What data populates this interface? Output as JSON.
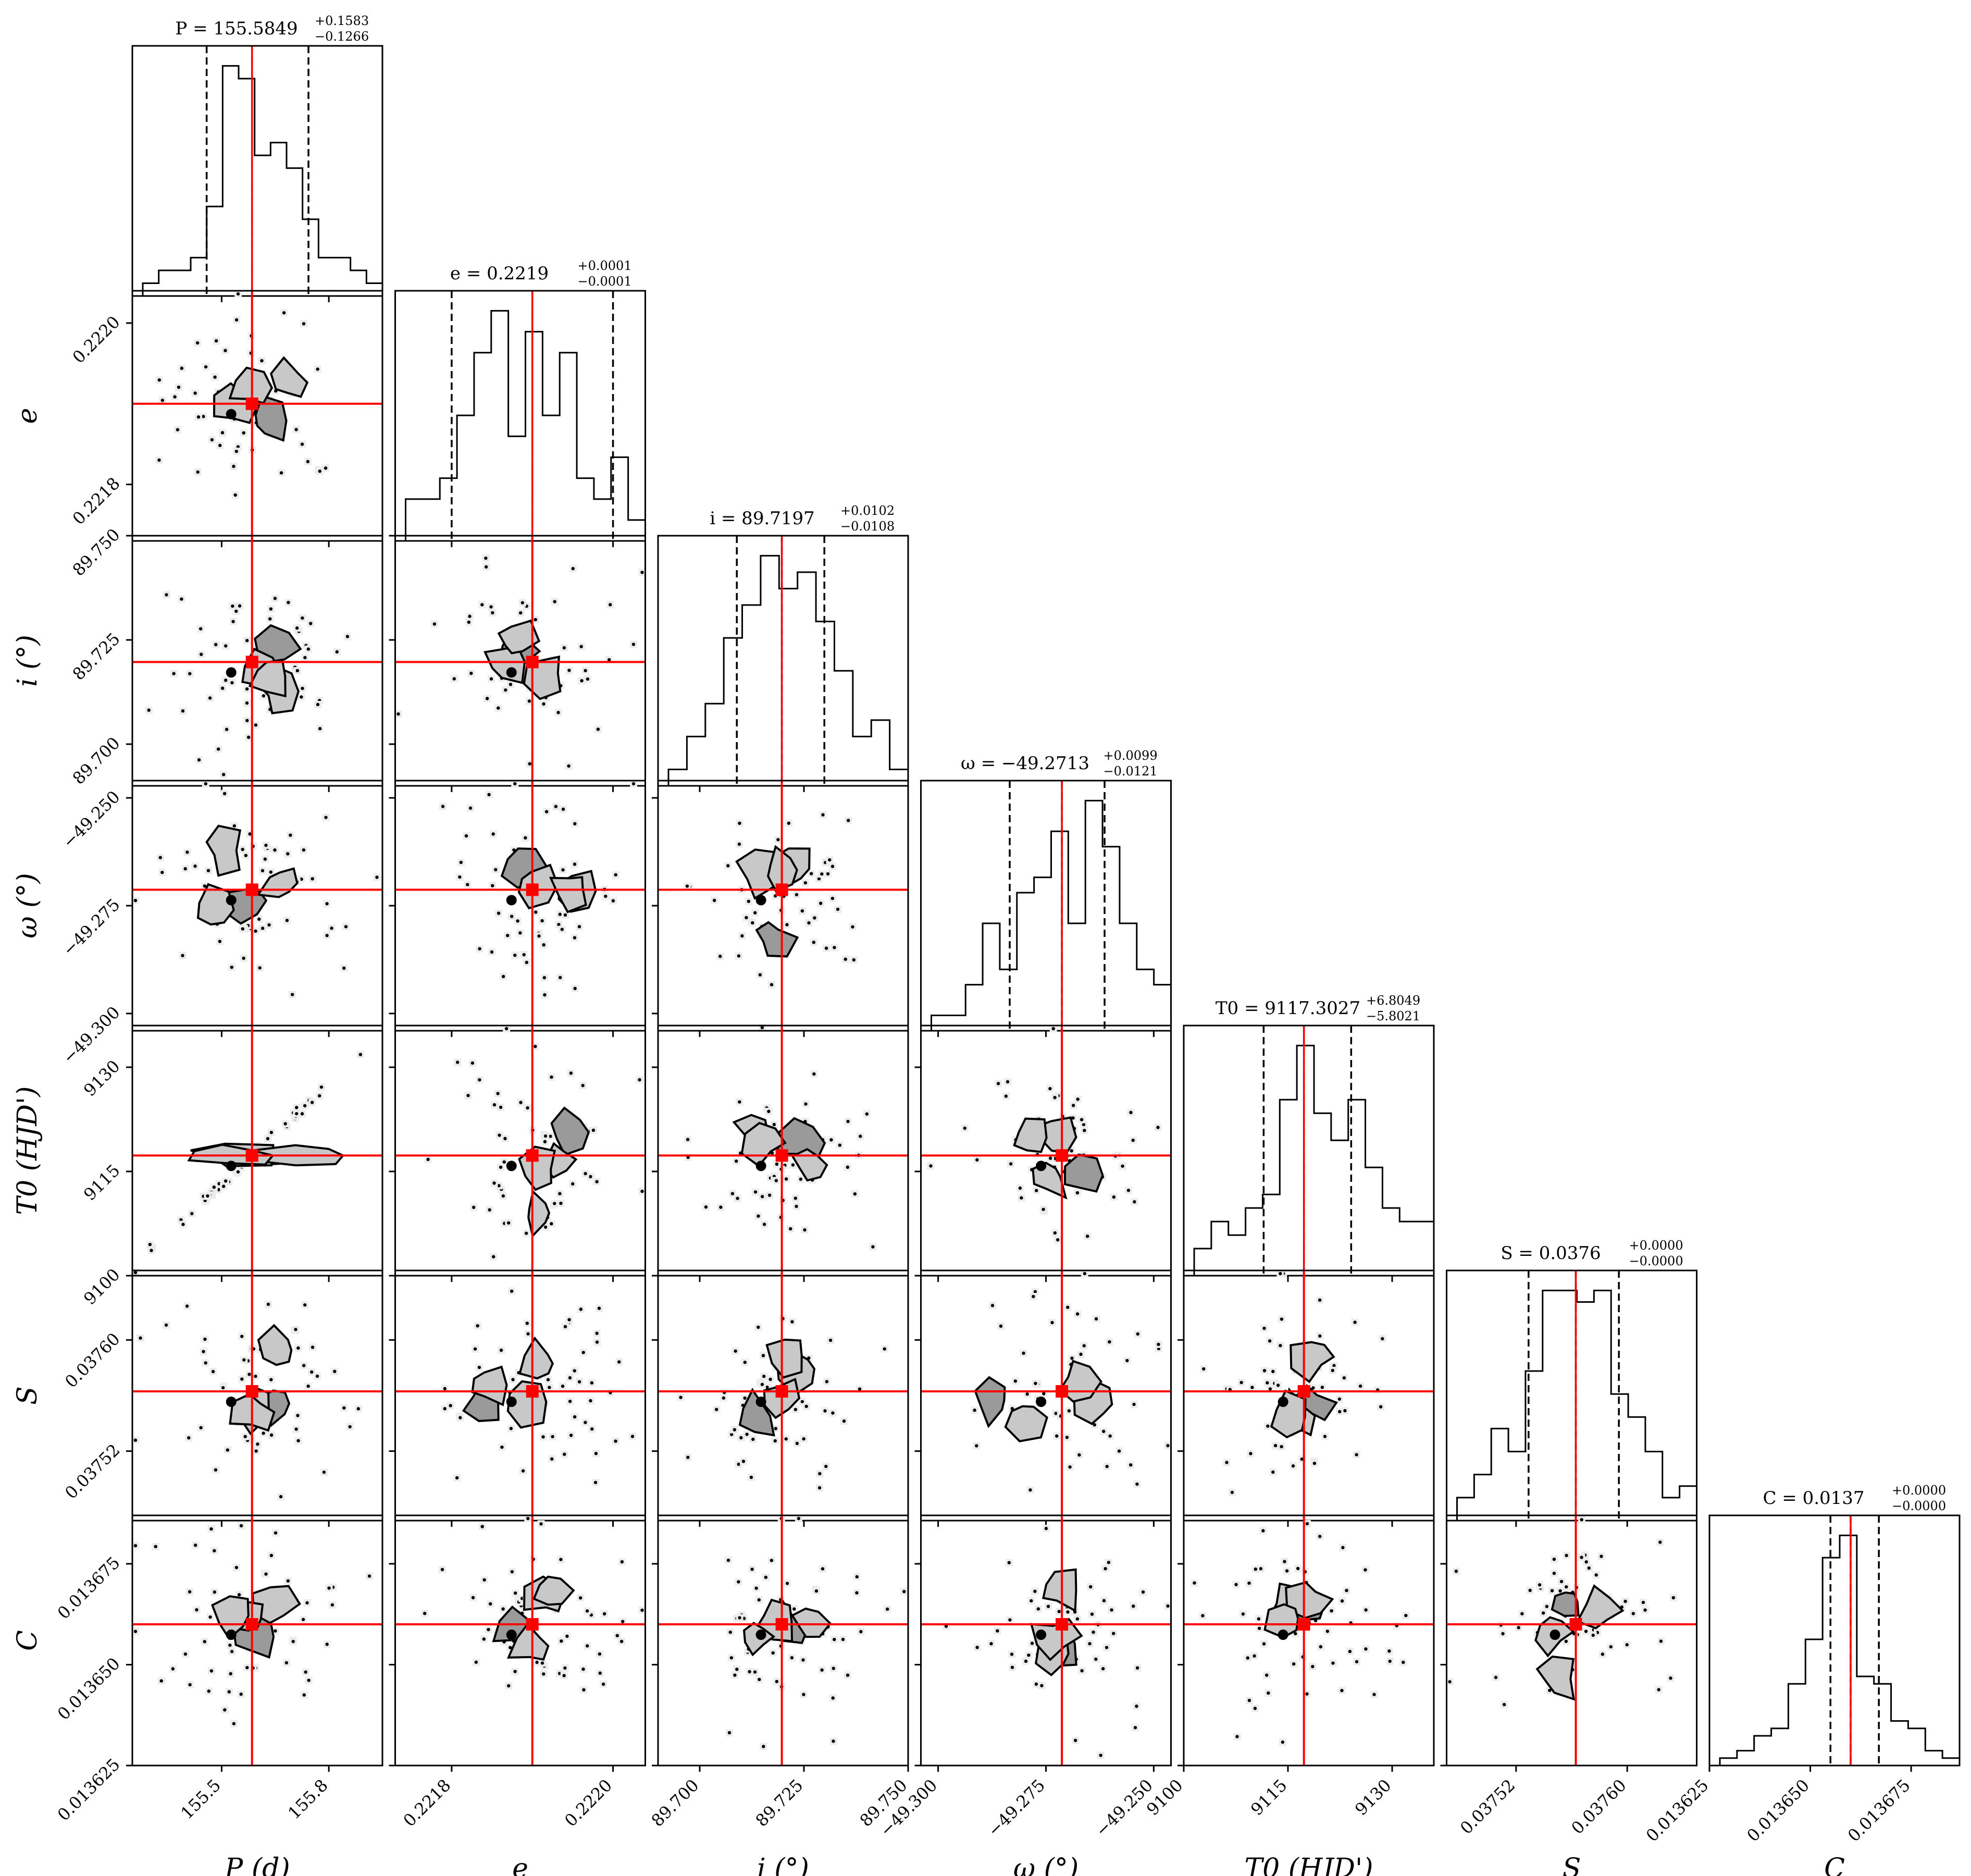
{
  "chart_data": {
    "type": "corner",
    "parameters": [
      {
        "key": "P",
        "axis_label": "P (d)",
        "title": "P = 155.5849",
        "title_sup": "+0.1583",
        "title_sub": "−0.1266",
        "ticks": [
          155.5,
          155.8
        ],
        "range": [
          155.25,
          155.95
        ],
        "median": 155.585,
        "q16": 155.458,
        "q84": 155.743
      },
      {
        "key": "e",
        "axis_label": "e",
        "title": "e = 0.2219",
        "title_sup": "+0.0001",
        "title_sub": "−0.0001",
        "ticks": [
          0.2218,
          0.222
        ],
        "range": [
          0.22173,
          0.22204
        ],
        "median": 0.2219,
        "q16": 0.2218,
        "q84": 0.222
      },
      {
        "key": "i",
        "axis_label": "i (°)",
        "title": "i = 89.7197",
        "title_sup": "+0.0102",
        "title_sub": "−0.0108",
        "ticks": [
          89.7,
          89.725,
          89.75
        ],
        "range": [
          89.69,
          89.75
        ],
        "median": 89.7197,
        "q16": 89.7089,
        "q84": 89.7299
      },
      {
        "key": "omega",
        "axis_label": "ω (°)",
        "title": "ω = −49.2713",
        "title_sup": "+0.0099",
        "title_sub": "−0.0121",
        "ticks": [
          -49.3,
          -49.275,
          -49.25
        ],
        "range": [
          -49.304,
          -49.246
        ],
        "median": -49.2713,
        "q16": -49.2834,
        "q84": -49.2614
      },
      {
        "key": "T0",
        "axis_label": "T0 (HJD')",
        "title": "T0 = 9117.3027",
        "title_sup": "+6.8049",
        "title_sub": "−5.8021",
        "ticks": [
          9100,
          9115,
          9130
        ],
        "range": [
          9100,
          9136
        ],
        "median": 9117.3,
        "q16": 9111.5,
        "q84": 9124.1
      },
      {
        "key": "S",
        "axis_label": "S",
        "title": "S = 0.0376",
        "title_sup": "+0.0000",
        "title_sub": "−0.0000",
        "ticks": [
          0.03752,
          0.0376
        ],
        "range": [
          0.03747,
          0.03765
        ],
        "median": 0.037563,
        "q16": 0.037529,
        "q84": 0.037594
      },
      {
        "key": "C",
        "axis_label": "C",
        "title": "C = 0.0137",
        "title_sup": "+0.0000",
        "title_sub": "−0.0000",
        "ticks": [
          0.013625,
          0.01365,
          0.013675
        ],
        "range": [
          0.013625,
          0.013687
        ],
        "median": 0.01366,
        "q16": 0.013655,
        "q84": 0.013667
      }
    ],
    "tick_labels": {
      "P": [
        "155.5",
        "155.8"
      ],
      "e": [
        "0.2218",
        "0.2220"
      ],
      "i": [
        "89.700",
        "89.725",
        "89.750"
      ],
      "omega": [
        "−49.300",
        "−49.275",
        "−49.250"
      ],
      "T0": [
        "9100",
        "9115",
        "9130"
      ],
      "S": [
        "0.03752",
        "0.03760"
      ],
      "C": [
        "0.013625",
        "0.013650",
        "0.013675"
      ]
    },
    "histograms": {
      "P": [
        1,
        2,
        2,
        3,
        7,
        18,
        17,
        11,
        12,
        10,
        6,
        3,
        3,
        2,
        1
      ],
      "e": [
        2,
        2,
        3,
        6,
        9,
        11,
        5,
        10,
        6,
        9,
        3,
        2,
        4,
        1
      ],
      "i": [
        1,
        3,
        5,
        9,
        11,
        14,
        12,
        13,
        10,
        7,
        3,
        4,
        1
      ],
      "omega": [
        1,
        1,
        3,
        7,
        4,
        9,
        10,
        13,
        7,
        15,
        12,
        7,
        4,
        3
      ],
      "T0": [
        2,
        4,
        3,
        5,
        6,
        13,
        17,
        12,
        10,
        13,
        8,
        5,
        4,
        4
      ],
      "S": [
        2,
        4,
        8,
        6,
        13,
        20,
        20,
        19,
        20,
        11,
        9,
        6,
        2,
        3
      ],
      "C": [
        1,
        2,
        4,
        5,
        11,
        17,
        28,
        31,
        12,
        11,
        6,
        5,
        2,
        1
      ]
    },
    "truth_color": "#ff0000",
    "hist_color": "#000000"
  }
}
